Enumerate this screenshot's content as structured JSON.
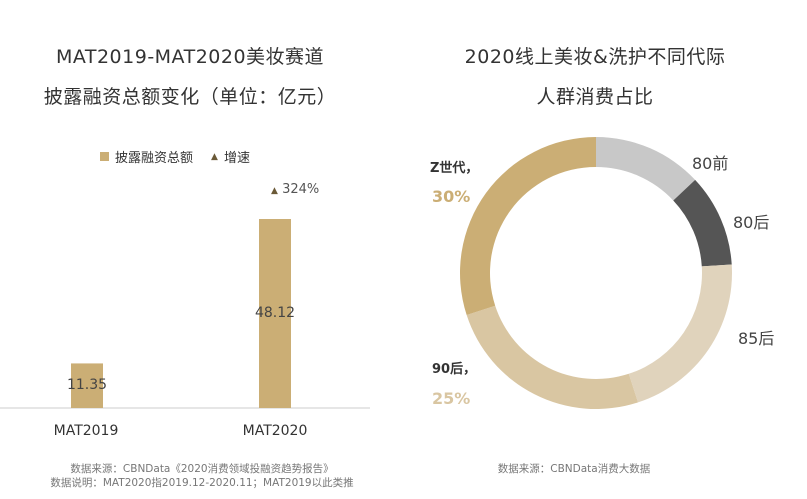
{
  "chart_data": [
    {
      "type": "bar",
      "title_lines": [
        "MAT2019-MAT2020美妆赛道",
        "披露融资总额变化（单位：亿元）"
      ],
      "categories": [
        "MAT2019",
        "MAT2020"
      ],
      "series": [
        {
          "name": "披露融资总额",
          "values": [
            11.35,
            48.12
          ],
          "color": "#CBAE75"
        }
      ],
      "legend": {
        "bar": "披露融资总额",
        "marker": "增速",
        "placement": "top"
      },
      "growth_label": "324%",
      "value_labels": [
        "11.35",
        "48.12"
      ],
      "ylim": [
        0,
        50
      ],
      "footnotes": [
        "数据来源：CBNData《2020消费领域投融资趋势报告》",
        "数据说明：MAT2020指2019.12-2020.11；MAT2019以此类推"
      ]
    },
    {
      "type": "pie",
      "donut": true,
      "title_lines": [
        "2020线上美妆&洗护不同代际",
        "人群消费占比"
      ],
      "slices": [
        {
          "label": "80前",
          "value": 13,
          "color": "#C8C8C8"
        },
        {
          "label": "80后",
          "value": 11,
          "color": "#555555"
        },
        {
          "label": "85后",
          "value": 21,
          "color": "#E0D3BC"
        },
        {
          "label": "90后，",
          "value": 25,
          "pct_label": "25%",
          "color": "#D9C6A2"
        },
        {
          "label": "Z世代，",
          "value": 30,
          "pct_label": "30%",
          "color": "#CBAE75"
        }
      ],
      "footnotes": [
        "数据来源：CBNData消费大数据"
      ]
    }
  ]
}
